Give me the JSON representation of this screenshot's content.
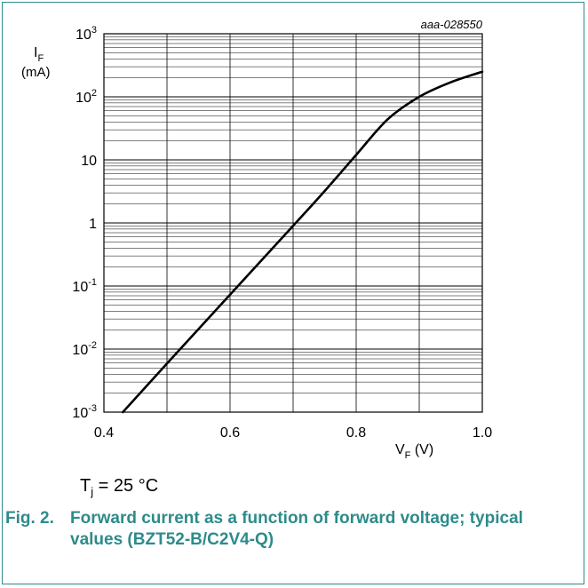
{
  "figure": {
    "code": "aaa-028550",
    "conditions": {
      "symbol": "T",
      "subscript": "j",
      "rest": " = 25 °C"
    },
    "caption": {
      "number": "Fig. 2.",
      "text": "Forward current as a function of forward voltage; typical values (BZT52-B/C2V4-Q)"
    }
  },
  "colors": {
    "accent": "#2e8b8b",
    "curve": "#000000",
    "grid": "#000000"
  },
  "chart_data": {
    "type": "line",
    "title": "",
    "xlabel": {
      "main": "V",
      "subscript": "F",
      "unit": " (V)"
    },
    "ylabel": {
      "main": "I",
      "subscript": "F",
      "unit": "(mA)"
    },
    "xlim": [
      0.4,
      1.0
    ],
    "ylim": [
      0.001,
      1000
    ],
    "yscale": "log",
    "grid": true,
    "x_ticks": [
      {
        "value": 0.4,
        "label": "0.4"
      },
      {
        "value": 0.6,
        "label": "0.6"
      },
      {
        "value": 0.8,
        "label": "0.8"
      },
      {
        "value": 1.0,
        "label": "1.0"
      }
    ],
    "y_ticks": [
      {
        "value": 0.001,
        "base": "10",
        "exp": "-3"
      },
      {
        "value": 0.01,
        "base": "10",
        "exp": "-2"
      },
      {
        "value": 0.1,
        "base": "10",
        "exp": "-1"
      },
      {
        "value": 1,
        "base": "1",
        "exp": ""
      },
      {
        "value": 10,
        "base": "10",
        "exp": ""
      },
      {
        "value": 100,
        "base": "10",
        "exp": "2"
      },
      {
        "value": 1000,
        "base": "10",
        "exp": "3"
      }
    ],
    "series": [
      {
        "x": [
          0.43,
          0.5,
          0.6,
          0.7,
          0.75,
          0.8,
          0.85,
          0.9,
          0.95,
          1.0
        ],
        "y": [
          0.001,
          0.0059,
          0.073,
          0.9,
          3.2,
          12,
          44,
          100,
          170,
          250
        ]
      }
    ]
  }
}
